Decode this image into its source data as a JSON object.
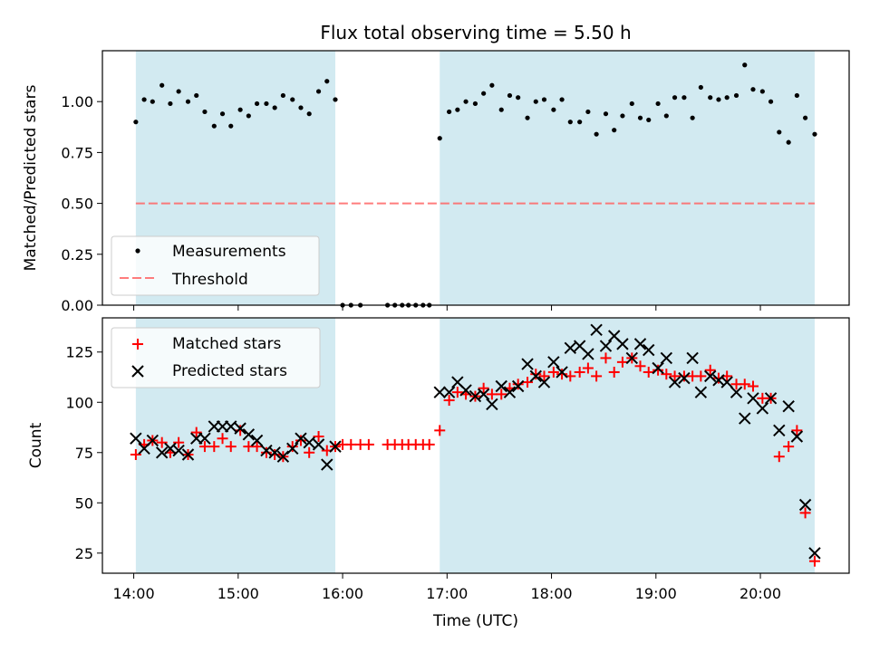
{
  "chart_data": {
    "type": "scatter",
    "title": "Flux total observing time = 5.50 h",
    "xlabel": "Time (UTC)",
    "x_unit": "hours (UTC)",
    "xlim": [
      13.7,
      20.85
    ],
    "xticks": [
      14,
      15,
      16,
      17,
      18,
      19,
      20
    ],
    "xtick_labels": [
      "14:00",
      "15:00",
      "16:00",
      "17:00",
      "18:00",
      "19:00",
      "20:00"
    ],
    "shaded_intervals": [
      [
        14.02,
        15.93
      ],
      [
        16.93,
        20.52
      ]
    ],
    "shade_color": "#add8e6",
    "top": {
      "ylabel": "Matched/Predicted stars",
      "ylim": [
        0,
        1.25
      ],
      "yticks": [
        0,
        0.25,
        0.5,
        0.75,
        1.0
      ],
      "ytick_labels": [
        "0.00",
        "0.25",
        "0.50",
        "0.75",
        "1.00"
      ],
      "legend": [
        "Measurements",
        "Threshold"
      ],
      "threshold": {
        "value": 0.5,
        "x_range": [
          14.02,
          20.52
        ],
        "color": "#ff6666"
      },
      "measurements": {
        "x": [
          14.02,
          14.1,
          14.18,
          14.27,
          14.35,
          14.43,
          14.52,
          14.6,
          14.68,
          14.77,
          14.85,
          14.93,
          15.02,
          15.1,
          15.18,
          15.27,
          15.35,
          15.43,
          15.52,
          15.6,
          15.68,
          15.77,
          15.85,
          15.93,
          16.0,
          16.08,
          16.17,
          16.43,
          16.5,
          16.57,
          16.63,
          16.7,
          16.77,
          16.83,
          16.93,
          17.02,
          17.1,
          17.18,
          17.27,
          17.35,
          17.43,
          17.52,
          17.6,
          17.68,
          17.77,
          17.85,
          17.93,
          18.02,
          18.1,
          18.18,
          18.27,
          18.35,
          18.43,
          18.52,
          18.6,
          18.68,
          18.77,
          18.85,
          18.93,
          19.02,
          19.1,
          19.18,
          19.27,
          19.35,
          19.43,
          19.52,
          19.6,
          19.68,
          19.77,
          19.85,
          19.93,
          20.02,
          20.1,
          20.18,
          20.27,
          20.35,
          20.43,
          20.52
        ],
        "y": [
          0.9,
          1.01,
          1.0,
          1.08,
          0.99,
          1.05,
          1.0,
          1.03,
          0.95,
          0.88,
          0.94,
          0.88,
          0.96,
          0.93,
          0.99,
          0.99,
          0.97,
          1.03,
          1.01,
          0.97,
          0.94,
          1.05,
          1.1,
          1.01,
          0.0,
          0.0,
          0.0,
          0.0,
          0.0,
          0.0,
          0.0,
          0.0,
          0.0,
          0.0,
          0.82,
          0.95,
          0.96,
          1.0,
          0.99,
          1.04,
          1.08,
          0.96,
          1.03,
          1.02,
          0.92,
          1.0,
          1.01,
          0.96,
          1.01,
          0.9,
          0.9,
          0.95,
          0.84,
          0.94,
          0.86,
          0.93,
          0.99,
          0.92,
          0.91,
          0.99,
          0.93,
          1.02,
          1.02,
          0.92,
          1.07,
          1.02,
          1.01,
          1.02,
          1.03,
          1.18,
          1.06,
          1.05,
          1.0,
          0.85,
          0.8,
          1.03,
          0.92,
          0.84
        ]
      }
    },
    "bottom": {
      "ylabel": "Count",
      "ylim": [
        15,
        142
      ],
      "yticks": [
        25,
        50,
        75,
        100,
        125
      ],
      "ytick_labels": [
        "25",
        "50",
        "75",
        "100",
        "125"
      ],
      "legend": [
        "Matched stars",
        "Predicted stars"
      ],
      "matched": {
        "color": "#ff0000",
        "x": [
          14.02,
          14.1,
          14.18,
          14.27,
          14.35,
          14.43,
          14.52,
          14.6,
          14.68,
          14.77,
          14.85,
          14.93,
          15.02,
          15.1,
          15.18,
          15.27,
          15.35,
          15.43,
          15.52,
          15.6,
          15.68,
          15.77,
          15.85,
          15.93,
          16.0,
          16.08,
          16.17,
          16.25,
          16.43,
          16.5,
          16.57,
          16.63,
          16.7,
          16.77,
          16.83,
          16.93,
          17.02,
          17.1,
          17.18,
          17.27,
          17.35,
          17.43,
          17.52,
          17.6,
          17.68,
          17.77,
          17.85,
          17.93,
          18.02,
          18.1,
          18.18,
          18.27,
          18.35,
          18.43,
          18.52,
          18.6,
          18.68,
          18.77,
          18.85,
          18.93,
          19.02,
          19.1,
          19.18,
          19.27,
          19.35,
          19.43,
          19.52,
          19.6,
          19.68,
          19.77,
          19.85,
          19.93,
          20.02,
          20.1,
          20.18,
          20.27,
          20.35,
          20.43,
          20.52
        ],
        "y": [
          74,
          79,
          81,
          80,
          75,
          80,
          74,
          85,
          78,
          78,
          82,
          78,
          86,
          78,
          78,
          75,
          74,
          73,
          78,
          81,
          75,
          83,
          76,
          78,
          79,
          79,
          79,
          79,
          79,
          79,
          79,
          79,
          79,
          79,
          79,
          86,
          101,
          105,
          104,
          103,
          107,
          104,
          104,
          107,
          109,
          110,
          114,
          113,
          115,
          114,
          113,
          115,
          117,
          113,
          122,
          115,
          120,
          122,
          118,
          115,
          116,
          114,
          113,
          113,
          113,
          113,
          116,
          112,
          113,
          109,
          109,
          108,
          102,
          102,
          73,
          78,
          86,
          45,
          21
        ]
      },
      "predicted": {
        "color": "#000000",
        "x": [
          14.02,
          14.1,
          14.18,
          14.27,
          14.35,
          14.43,
          14.52,
          14.6,
          14.68,
          14.77,
          14.85,
          14.93,
          15.02,
          15.1,
          15.18,
          15.27,
          15.35,
          15.43,
          15.52,
          15.6,
          15.68,
          15.77,
          15.85,
          15.93,
          16.93,
          17.02,
          17.1,
          17.18,
          17.27,
          17.35,
          17.43,
          17.52,
          17.6,
          17.68,
          17.77,
          17.85,
          17.93,
          18.02,
          18.1,
          18.18,
          18.27,
          18.35,
          18.43,
          18.52,
          18.6,
          18.68,
          18.77,
          18.85,
          18.93,
          19.02,
          19.1,
          19.18,
          19.27,
          19.35,
          19.43,
          19.52,
          19.6,
          19.68,
          19.77,
          19.85,
          19.93,
          20.02,
          20.1,
          20.18,
          20.27,
          20.35,
          20.43,
          20.52
        ],
        "y": [
          82,
          77,
          81,
          75,
          77,
          76,
          74,
          82,
          82,
          88,
          88,
          88,
          87,
          84,
          81,
          76,
          75,
          73,
          77,
          82,
          80,
          79,
          69,
          78,
          105,
          105,
          110,
          106,
          103,
          104,
          99,
          108,
          105,
          108,
          119,
          113,
          110,
          120,
          115,
          127,
          128,
          124,
          136,
          128,
          133,
          129,
          122,
          129,
          126,
          117,
          122,
          110,
          112,
          122,
          105,
          113,
          111,
          110,
          105,
          92,
          102,
          97,
          102,
          86,
          98,
          83,
          49,
          25
        ]
      }
    }
  }
}
